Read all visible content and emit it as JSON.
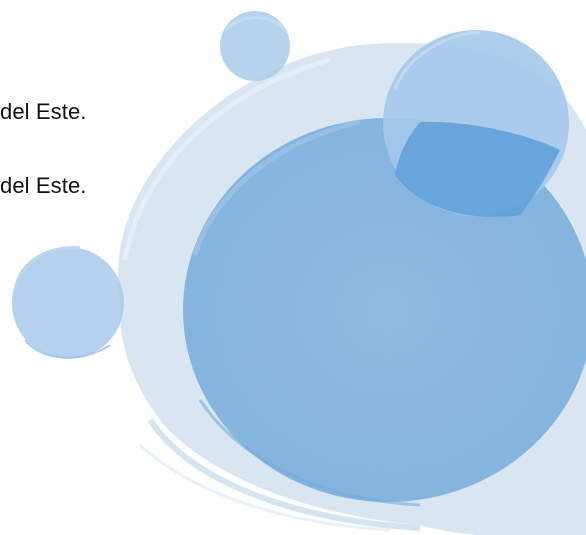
{
  "text_lines": [
    "del Este.",
    "del Este."
  ],
  "colors": {
    "background": "#ffffff",
    "pale_blue": "#cfe0ef",
    "light_blue": "#a7c9ea",
    "mid_blue": "#86b4df",
    "deep_blue": "#5e9fd9",
    "text": "#111111"
  }
}
